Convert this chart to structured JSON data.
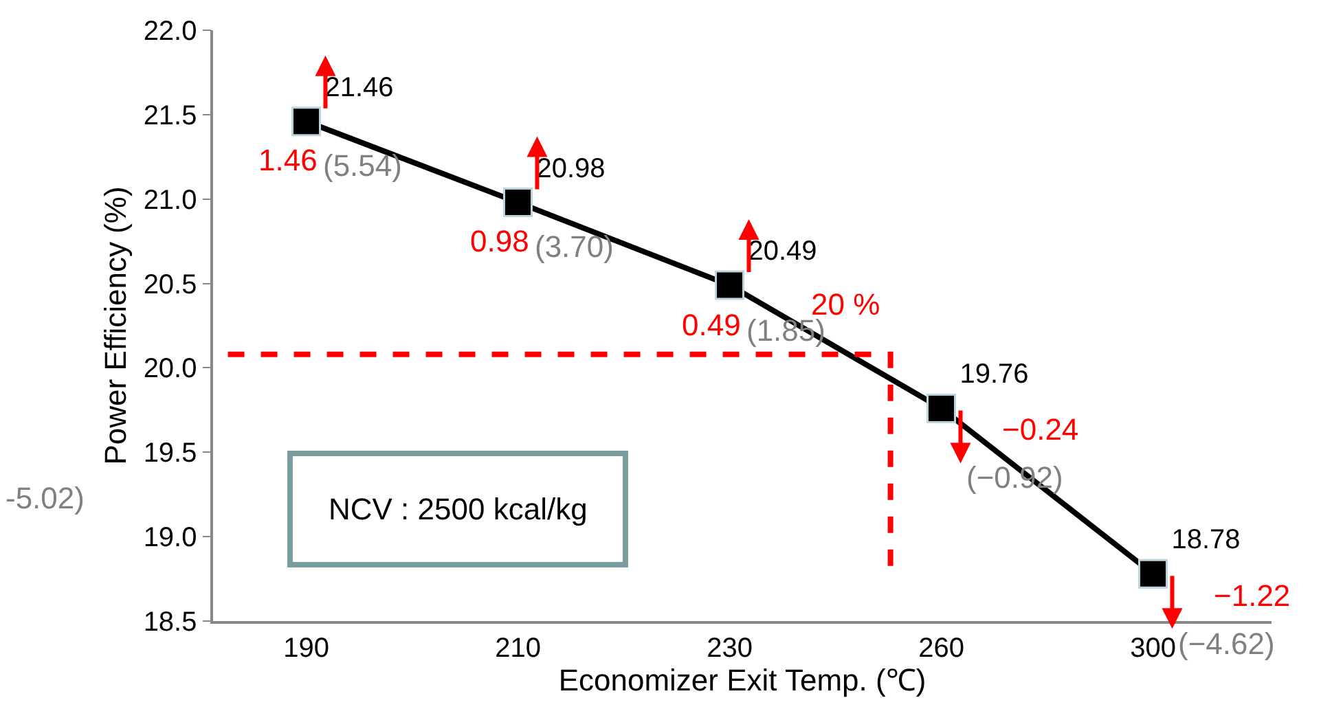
{
  "chart_data": {
    "type": "line",
    "xlabel": "Economizer Exit Temp. (℃)",
    "ylabel": "Power Efficiency (%)",
    "categories": [
      "190",
      "210",
      "230",
      "260",
      "300"
    ],
    "series": [
      {
        "color": "#000000",
        "values": [
          21.46,
          20.98,
          20.49,
          19.76,
          18.78
        ]
      }
    ],
    "marker": "square",
    "line_style": "solid",
    "data_labels": true,
    "ylim": [
      18.5,
      22.0
    ],
    "yticks": [
      18.5,
      {
        "value": 19.0,
        "label": "19.0"
      },
      19.5,
      {
        "value": 20.0,
        "label": "20.0"
      },
      20.5,
      {
        "value": 21.0,
        "label": "21.0"
      },
      21.5,
      {
        "value": 22.0,
        "label": "22.0"
      }
    ],
    "ref_lines": [
      {
        "axis": "y",
        "value": 20.08,
        "label": "20 %",
        "color": "#ff0000",
        "line_style": "dashed"
      }
    ],
    "annotations": [
      "NCV : 2500 kcal/kg",
      "-5.02)",
      {
        "text": "1.46",
        "x": "190",
        "y": 21.46
      },
      {
        "text": "(5.54)",
        "x": "190",
        "y": 21.46
      },
      {
        "text": "0.98",
        "x": "210",
        "y": 20.98
      },
      {
        "text": "(3.70)",
        "x": "210",
        "y": 20.98
      },
      {
        "text": "0.49",
        "x": "230",
        "y": 20.49
      },
      {
        "text": "(1.85)",
        "x": "230",
        "y": 20.49
      },
      {
        "text": "−0.24",
        "x": "260",
        "y": 19.76
      },
      {
        "text": "(−0.92)",
        "x": "260",
        "y": 19.76
      },
      {
        "text": "−1.22",
        "x": "300",
        "y": 18.78
      },
      {
        "text": "(−4.62)",
        "x": "300",
        "y": 18.78
      }
    ]
  }
}
